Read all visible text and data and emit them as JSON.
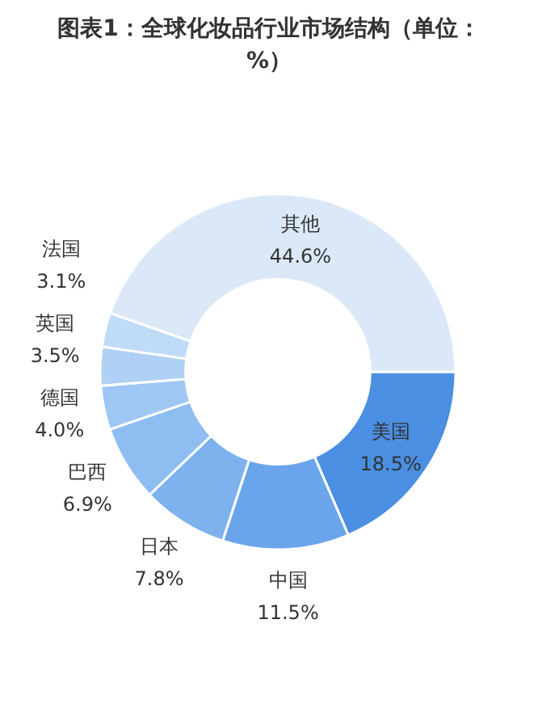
{
  "chart_data": {
    "type": "donut",
    "title": "图表1：全球化妆品行业市场结构（单位：%）",
    "categories": [
      "美国",
      "中国",
      "日本",
      "巴西",
      "德国",
      "英国",
      "法国",
      "其他"
    ],
    "values": [
      18.5,
      11.5,
      7.8,
      6.9,
      4.0,
      3.5,
      3.1,
      44.6
    ],
    "colors": [
      "#4a8fe2",
      "#6aa5ec",
      "#7db2ef",
      "#8ebdf1",
      "#9ec7f3",
      "#aed1f5",
      "#bfdbf7",
      "#dbe8f8"
    ],
    "value_labels": [
      "18.5%",
      "11.5%",
      "7.8%",
      "6.9%",
      "4.0%",
      "3.5%",
      "3.1%",
      "44.6%"
    ]
  }
}
